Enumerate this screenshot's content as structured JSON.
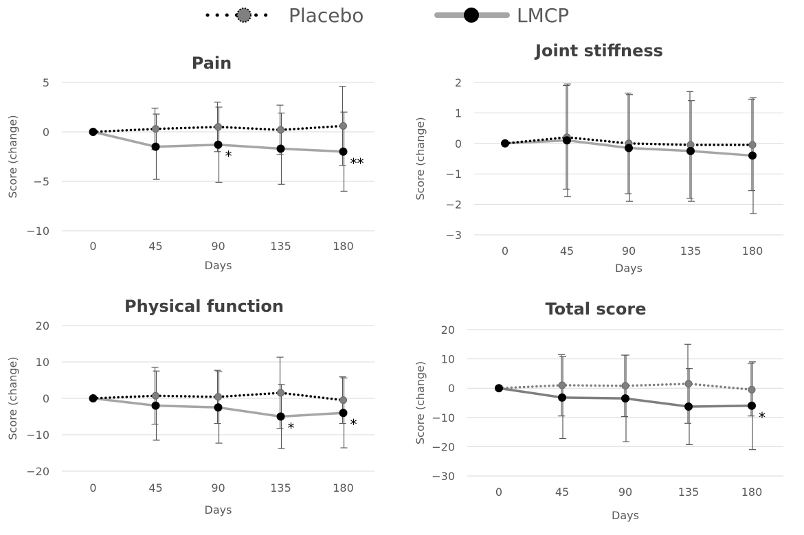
{
  "legend": {
    "placebo": "Placebo",
    "lmcp": "LMCP"
  },
  "colors": {
    "placebo_line": "#000000",
    "placebo_marker": "#808080",
    "lmcp_line": "#a6a6a6",
    "lmcp_line_total": "#7f7f7f",
    "lmcp_marker": "#000000",
    "errorbar": "#595959",
    "gridline": "#d9d9d9"
  },
  "chart_data": [
    {
      "type": "line",
      "title": "Pain",
      "xlabel": "Days",
      "ylabel": "Score (change)",
      "x": [
        0,
        45,
        90,
        135,
        180
      ],
      "ylim": [
        -10,
        5
      ],
      "yticks": [
        5,
        0,
        -5,
        -10
      ],
      "series": [
        {
          "name": "Placebo",
          "values": [
            0,
            0.3,
            0.5,
            0.2,
            0.6
          ],
          "err": [
            0,
            2.1,
            2.5,
            2.5,
            4.0
          ]
        },
        {
          "name": "LMCP",
          "values": [
            0,
            -1.5,
            -1.3,
            -1.7,
            -2.0
          ],
          "err": [
            0,
            3.3,
            3.8,
            3.6,
            4.0
          ]
        }
      ],
      "annotations": [
        {
          "x": 90,
          "text": "*"
        },
        {
          "x": 180,
          "text": "**"
        }
      ]
    },
    {
      "type": "line",
      "title": "Joint stiffness",
      "xlabel": "Days",
      "ylabel": "Score (change)",
      "x": [
        0,
        45,
        90,
        135,
        180
      ],
      "ylim": [
        -3,
        2
      ],
      "yticks": [
        2,
        1,
        0,
        -1,
        -2,
        -3
      ],
      "series": [
        {
          "name": "Placebo",
          "values": [
            0,
            0.2,
            0,
            -0.05,
            -0.05
          ],
          "err": [
            0,
            1.7,
            1.65,
            1.75,
            1.5
          ]
        },
        {
          "name": "LMCP",
          "values": [
            0,
            0.1,
            -0.15,
            -0.25,
            -0.4
          ],
          "err": [
            0,
            1.85,
            1.75,
            1.65,
            1.9
          ]
        }
      ],
      "annotations": []
    },
    {
      "type": "line",
      "title": "Physical function",
      "xlabel": "Days",
      "ylabel": "Score (change)",
      "x": [
        0,
        45,
        90,
        135,
        180
      ],
      "ylim": [
        -20,
        20
      ],
      "yticks": [
        20,
        10,
        0,
        -10,
        -20
      ],
      "series": [
        {
          "name": "Placebo",
          "values": [
            0,
            0.7,
            0.4,
            1.5,
            -0.5
          ],
          "err": [
            0,
            7.8,
            7.3,
            9.8,
            6.4
          ]
        },
        {
          "name": "LMCP",
          "values": [
            0,
            -2,
            -2.5,
            -5,
            -4
          ],
          "err": [
            0,
            9.5,
            9.8,
            8.8,
            9.6
          ]
        }
      ],
      "annotations": [
        {
          "x": 135,
          "text": "*"
        },
        {
          "x": 180,
          "text": "*"
        }
      ]
    },
    {
      "type": "line",
      "title": "Total score",
      "xlabel": "Days",
      "ylabel": "Score (change)",
      "x": [
        0,
        45,
        90,
        135,
        180
      ],
      "ylim": [
        -30,
        20
      ],
      "yticks": [
        20,
        10,
        0,
        -10,
        -20,
        -30
      ],
      "series": [
        {
          "name": "Placebo",
          "values": [
            0,
            1,
            0.8,
            1.5,
            -0.5
          ],
          "err": [
            0,
            10.5,
            10.5,
            13.5,
            9.0
          ]
        },
        {
          "name": "LMCP",
          "values": [
            0,
            -3.2,
            -3.5,
            -6.3,
            -6.0
          ],
          "err": [
            0,
            14,
            14.8,
            13,
            15
          ]
        }
      ],
      "annotations": [
        {
          "x": 180,
          "text": "*"
        }
      ]
    }
  ]
}
